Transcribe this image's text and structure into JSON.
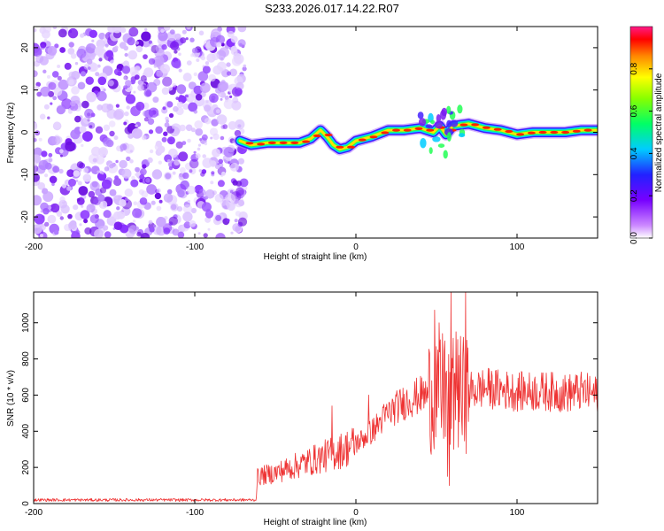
{
  "title": "S233.2026.017.14.22.R07",
  "chart_data": [
    {
      "type": "heatmap",
      "xlabel": "Height of straight line (km)",
      "ylabel": "Frequency (Hz)",
      "xlim": [
        -200,
        150
      ],
      "ylim": [
        -25,
        25
      ],
      "xticks": [
        -200,
        -100,
        0,
        100
      ],
      "xtick_labels": [
        "-200",
        "-100",
        "0",
        "100"
      ],
      "yticks": [
        -20,
        -10,
        0,
        10,
        20
      ],
      "ytick_labels": [
        "-20",
        "-10",
        "0",
        "10",
        "20"
      ],
      "noise_region_x": [
        -200,
        -72
      ],
      "signal_track": {
        "x": [
          -72,
          -65,
          -55,
          -45,
          -35,
          -28,
          -22,
          -18,
          -14,
          -10,
          -5,
          0,
          5,
          10,
          20,
          30,
          40,
          48,
          52,
          56,
          60,
          70,
          80,
          90,
          100,
          110,
          120,
          130,
          140,
          150
        ],
        "freq_hz": [
          -2,
          -3,
          -2.5,
          -2.5,
          -2.5,
          -1.5,
          0.5,
          -1,
          -3,
          -4,
          -3.5,
          -2,
          -1.5,
          -1,
          0.5,
          0.5,
          1,
          0,
          1.5,
          -0.5,
          1.5,
          2,
          1,
          0.5,
          -0.5,
          0,
          0,
          0,
          0.5,
          0.5
        ]
      },
      "colorbar": {
        "label": "Normalized spectral amplitude",
        "range": [
          0,
          1
        ],
        "ticks": [
          0.0,
          0.2,
          0.4,
          0.6,
          0.8
        ],
        "tick_labels": [
          "0.0",
          "0.2",
          "0.4",
          "0.6",
          "0.8"
        ]
      }
    },
    {
      "type": "line",
      "xlabel": "Height of straight line (km)",
      "ylabel": "SNR (10 * v/v)",
      "xlim": [
        -200,
        150
      ],
      "ylim": [
        0,
        1170
      ],
      "xticks": [
        -200,
        -100,
        0,
        100
      ],
      "xtick_labels": [
        "-200",
        "-100",
        "0",
        "100"
      ],
      "yticks": [
        0,
        200,
        400,
        600,
        800,
        1000
      ],
      "ytick_labels": [
        "0",
        "200",
        "400",
        "600",
        "800",
        "1000"
      ],
      "series": [
        {
          "name": "SNR",
          "color": "#ee3333",
          "envelope_x": [
            -200,
            -62,
            -61,
            -50,
            -40,
            -30,
            -20,
            -10,
            0,
            10,
            20,
            30,
            40,
            48,
            52,
            55,
            58,
            62,
            66,
            70,
            80,
            90,
            100,
            110,
            120,
            130,
            140,
            150
          ],
          "envelope_y": [
            20,
            20,
            150,
            170,
            200,
            230,
            260,
            290,
            330,
            400,
            500,
            560,
            600,
            600,
            650,
            600,
            550,
            620,
            600,
            620,
            640,
            630,
            620,
            620,
            620,
            610,
            620,
            600
          ],
          "spikes_x": [
            -15,
            8,
            49,
            51,
            53,
            55,
            57,
            58,
            59,
            60,
            62,
            64,
            66,
            68
          ],
          "spikes_y": [
            540,
            600,
            1070,
            850,
            420,
            900,
            150,
            100,
            1170,
            750,
            950,
            820,
            380,
            1170
          ]
        }
      ]
    }
  ]
}
